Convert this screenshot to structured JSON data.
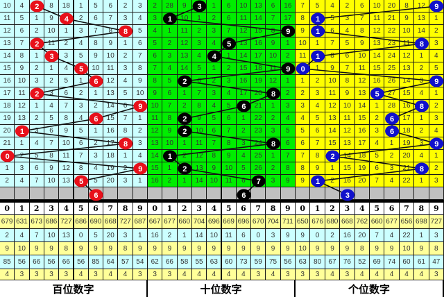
{
  "chart_data": {
    "type": "table",
    "colors": {
      "hundreds_bg": "#ccffff",
      "hundreds_ball": "#e8101a",
      "tens_bg": "#00ee00",
      "tens_ball": "#000000",
      "units_bg": "#ffff00",
      "units_ball": "#1010cc",
      "empty_row": "#c0c0c0",
      "stat_yellow": "#ffff99",
      "stat_cyan": "#ccffff"
    },
    "header_digits": [
      "0",
      "1",
      "2",
      "3",
      "4",
      "5",
      "6",
      "7",
      "8",
      "9"
    ],
    "panels": [
      {
        "label": "百位数字",
        "key": "hundreds",
        "rows": [
          [
            10,
            4,
            "2",
            8,
            18,
            1,
            5,
            6,
            2,
            3
          ],
          [
            11,
            5,
            1,
            9,
            "4",
            2,
            6,
            7,
            3,
            4
          ],
          [
            12,
            6,
            2,
            10,
            1,
            3,
            7,
            8,
            "8",
            5
          ],
          [
            13,
            7,
            "2",
            11,
            2,
            4,
            8,
            9,
            1,
            6
          ],
          [
            14,
            8,
            1,
            "3",
            3,
            5,
            9,
            10,
            2,
            7
          ],
          [
            15,
            9,
            2,
            1,
            4,
            "5",
            10,
            11,
            3,
            8
          ],
          [
            16,
            10,
            3,
            2,
            5,
            1,
            "6",
            12,
            4,
            9
          ],
          [
            17,
            11,
            "2",
            3,
            6,
            2,
            1,
            13,
            5,
            10
          ],
          [
            18,
            12,
            1,
            4,
            7,
            3,
            2,
            14,
            6,
            "9"
          ],
          [
            19,
            13,
            2,
            5,
            8,
            4,
            "6",
            15,
            7,
            1
          ],
          [
            20,
            "1",
            3,
            6,
            9,
            5,
            1,
            16,
            8,
            2
          ],
          [
            21,
            1,
            4,
            7,
            10,
            6,
            2,
            17,
            "8",
            3
          ],
          [
            "0",
            2,
            5,
            8,
            11,
            7,
            3,
            18,
            1,
            4
          ],
          [
            1,
            3,
            6,
            9,
            12,
            8,
            4,
            19,
            2,
            "9"
          ],
          [
            2,
            4,
            7,
            10,
            13,
            "5",
            5,
            20,
            3,
            1
          ]
        ],
        "next": "6",
        "stats": [
          [
            "679",
            "631",
            "673",
            "686",
            "727",
            "686",
            "690",
            "668",
            "727",
            "687"
          ],
          [
            "2",
            "4",
            "7",
            "10",
            "13",
            "0",
            "5",
            "20",
            "3",
            "1"
          ],
          [
            "9",
            "10",
            "9",
            "9",
            "8",
            "9",
            "9",
            "9",
            "8",
            "9"
          ],
          [
            "85",
            "56",
            "66",
            "56",
            "66",
            "56",
            "85",
            "64",
            "57",
            "54"
          ],
          [
            "4",
            "3",
            "3",
            "3",
            "3",
            "4",
            "3",
            "4",
            "4",
            "3"
          ]
        ]
      },
      {
        "label": "十位数字",
        "key": "tens",
        "rows": [
          [
            2,
            28,
            9,
            "3",
            1,
            6,
            10,
            13,
            6,
            16
          ],
          [
            3,
            "1",
            10,
            1,
            2,
            6,
            11,
            14,
            7,
            17
          ],
          [
            4,
            1,
            11,
            2,
            3,
            7,
            12,
            15,
            8,
            "9"
          ],
          [
            5,
            2,
            12,
            3,
            4,
            "5",
            13,
            16,
            9,
            1
          ],
          [
            6,
            3,
            13,
            4,
            "4",
            1,
            14,
            17,
            10,
            2
          ],
          [
            7,
            4,
            14,
            5,
            1,
            2,
            15,
            18,
            11,
            "9"
          ],
          [
            8,
            5,
            "2",
            6,
            2,
            3,
            16,
            19,
            12,
            1
          ],
          [
            9,
            6,
            1,
            7,
            3,
            4,
            17,
            20,
            "8",
            2
          ],
          [
            10,
            7,
            2,
            8,
            4,
            5,
            "6",
            21,
            1,
            3
          ],
          [
            11,
            8,
            "2",
            9,
            5,
            6,
            1,
            22,
            2,
            4
          ],
          [
            12,
            9,
            "2",
            10,
            6,
            7,
            2,
            23,
            3,
            5
          ],
          [
            13,
            10,
            1,
            11,
            7,
            8,
            3,
            24,
            "8",
            6
          ],
          [
            14,
            "1",
            2,
            12,
            8,
            9,
            4,
            25,
            1,
            7
          ],
          [
            15,
            1,
            "2",
            13,
            9,
            10,
            5,
            26,
            2,
            8
          ],
          [
            16,
            2,
            1,
            14,
            10,
            11,
            6,
            "7",
            3,
            9
          ]
        ],
        "next": "6",
        "stats": [
          [
            "667",
            "677",
            "660",
            "704",
            "696",
            "669",
            "696",
            "670",
            "704",
            "711"
          ],
          [
            "16",
            "2",
            "1",
            "14",
            "10",
            "11",
            "6",
            "0",
            "3",
            "9"
          ],
          [
            "9",
            "9",
            "9",
            "9",
            "9",
            "9",
            "9",
            "9",
            "9",
            "9"
          ],
          [
            "62",
            "66",
            "58",
            "55",
            "63",
            "60",
            "73",
            "59",
            "75",
            "56"
          ],
          [
            "3",
            "3",
            "4",
            "4",
            "4",
            "4",
            "4",
            "3",
            "4",
            "3"
          ]
        ]
      },
      {
        "label": "个位数字",
        "key": "units",
        "rows": [
          [
            7,
            5,
            4,
            2,
            6,
            10,
            20,
            8,
            12,
            "9"
          ],
          [
            8,
            "1",
            5,
            3,
            7,
            11,
            21,
            9,
            13,
            1
          ],
          [
            9,
            "1",
            6,
            4,
            8,
            12,
            22,
            10,
            14,
            2
          ],
          [
            10,
            1,
            7,
            5,
            9,
            13,
            23,
            11,
            "8",
            3
          ],
          [
            11,
            "1",
            8,
            6,
            10,
            14,
            24,
            12,
            1,
            4
          ],
          [
            "0",
            1,
            9,
            7,
            11,
            15,
            25,
            13,
            2,
            5
          ],
          [
            1,
            2,
            10,
            8,
            12,
            16,
            26,
            14,
            3,
            "9"
          ],
          [
            2,
            3,
            11,
            9,
            13,
            "5",
            27,
            15,
            4,
            1
          ],
          [
            3,
            4,
            12,
            10,
            14,
            1,
            28,
            16,
            "8",
            2
          ],
          [
            4,
            5,
            13,
            11,
            15,
            2,
            "6",
            17,
            1,
            3
          ],
          [
            5,
            6,
            14,
            12,
            16,
            3,
            "6",
            18,
            2,
            4
          ],
          [
            6,
            7,
            15,
            13,
            17,
            4,
            1,
            19,
            3,
            "9"
          ],
          [
            7,
            8,
            "2",
            14,
            18,
            5,
            2,
            20,
            4,
            1
          ],
          [
            8,
            9,
            1,
            15,
            19,
            6,
            3,
            21,
            "8",
            2
          ],
          [
            9,
            "1",
            2,
            16,
            20,
            7,
            4,
            22,
            1,
            3
          ]
        ],
        "next": "3",
        "stats": [
          [
            "650",
            "676",
            "680",
            "668",
            "762",
            "660",
            "677",
            "656",
            "698",
            "727"
          ],
          [
            "9",
            "0",
            "2",
            "16",
            "20",
            "7",
            "4",
            "22",
            "1",
            "3"
          ],
          [
            "10",
            "9",
            "9",
            "9",
            "8",
            "9",
            "9",
            "10",
            "9",
            "8"
          ],
          [
            "63",
            "80",
            "67",
            "76",
            "52",
            "69",
            "74",
            "60",
            "61",
            "47"
          ],
          [
            "3",
            "3",
            "4",
            "3",
            "4",
            "4",
            "4",
            "4",
            "4",
            "3"
          ]
        ]
      }
    ]
  }
}
